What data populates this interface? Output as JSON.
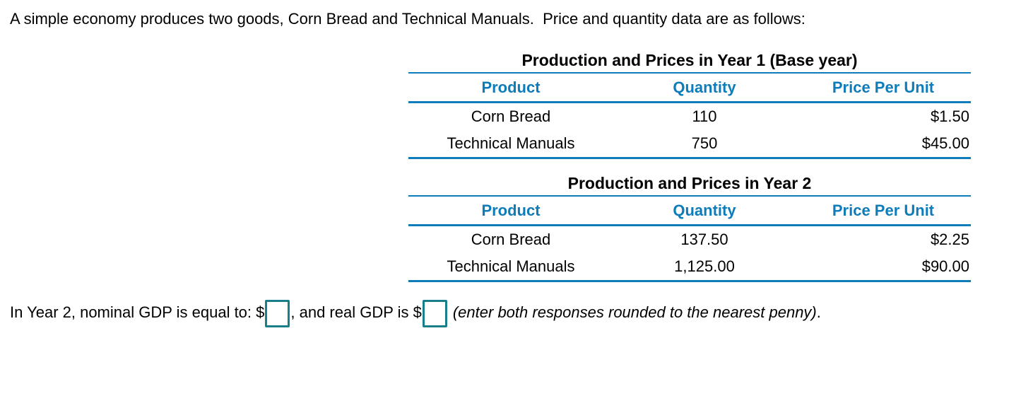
{
  "intro": "A simple economy produces two goods, Corn Bread and Technical Manuals.  Price and quantity data are as follows:",
  "tables": [
    {
      "title": "Production and Prices in Year 1 (Base year)",
      "headers": [
        "Product",
        "Quantity",
        "Price Per Unit"
      ],
      "rows": [
        [
          "Corn Bread",
          "110",
          "$1.50"
        ],
        [
          "Technical Manuals",
          "750",
          "$45.00"
        ]
      ]
    },
    {
      "title": "Production and Prices in Year 2",
      "headers": [
        "Product",
        "Quantity",
        "Price Per Unit"
      ],
      "rows": [
        [
          "Corn Bread",
          "137.50",
          "$2.25"
        ],
        [
          "Technical Manuals",
          "1,125.00",
          "$90.00"
        ]
      ]
    }
  ],
  "question": {
    "part1": "In Year 2, nominal GDP is equal to: $",
    "nominal_gdp_value": "",
    "part2": ", and real GDP is $",
    "real_gdp_value": "",
    "note_italic": "(enter both responses rounded to the nearest penny)",
    "period": "."
  },
  "colors": {
    "table_blue": "#0f7cba",
    "answer_box_teal": "#177e8a",
    "text_black": "#000000",
    "background": "#ffffff"
  }
}
